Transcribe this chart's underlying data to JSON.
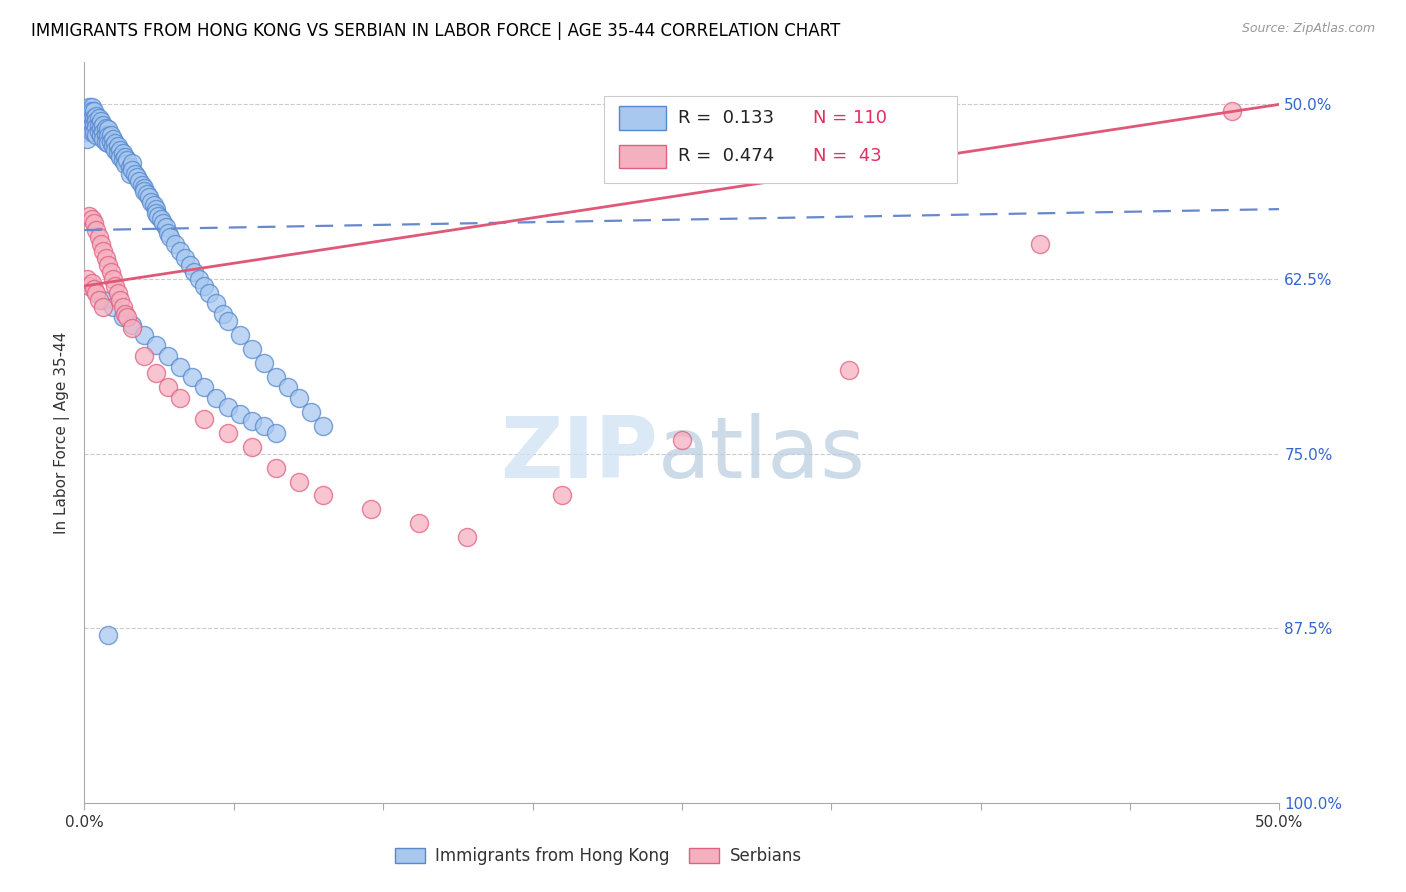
{
  "title": "IMMIGRANTS FROM HONG KONG VS SERBIAN IN LABOR FORCE | AGE 35-44 CORRELATION CHART",
  "source": "Source: ZipAtlas.com",
  "ylabel": "In Labor Force | Age 35-44",
  "xlim": [
    0.0,
    0.5
  ],
  "ylim": [
    0.5,
    1.03
  ],
  "x_tick_positions": [
    0.0,
    0.0625,
    0.125,
    0.1875,
    0.25,
    0.3125,
    0.375,
    0.4375,
    0.5
  ],
  "y_tick_positions": [
    0.5,
    0.625,
    0.75,
    0.875,
    1.0
  ],
  "hk_color_face": "#a8c8f0",
  "hk_color_edge": "#5588cc",
  "serb_color_face": "#f5b0c0",
  "serb_color_edge": "#e06080",
  "trend_hk_color": "#6688cc",
  "trend_serb_color": "#e05878",
  "r_hk_text": "R =  0.133",
  "n_hk_text": "N = 110",
  "r_serb_text": "R =  0.474",
  "n_serb_text": "N =  43",
  "legend_label_hk": "Immigrants from Hong Kong",
  "legend_label_serb": "Serbians",
  "watermark_zip": "ZIP",
  "watermark_atlas": "atlas",
  "hk_x": [
    0.001,
    0.001,
    0.001,
    0.001,
    0.001,
    0.002,
    0.002,
    0.002,
    0.002,
    0.003,
    0.003,
    0.003,
    0.003,
    0.003,
    0.004,
    0.004,
    0.004,
    0.004,
    0.005,
    0.005,
    0.005,
    0.005,
    0.006,
    0.006,
    0.006,
    0.007,
    0.007,
    0.007,
    0.008,
    0.008,
    0.008,
    0.009,
    0.009,
    0.009,
    0.01,
    0.01,
    0.01,
    0.011,
    0.011,
    0.012,
    0.012,
    0.013,
    0.013,
    0.014,
    0.014,
    0.015,
    0.015,
    0.016,
    0.016,
    0.017,
    0.017,
    0.018,
    0.019,
    0.019,
    0.02,
    0.02,
    0.021,
    0.022,
    0.023,
    0.024,
    0.025,
    0.025,
    0.026,
    0.027,
    0.028,
    0.029,
    0.03,
    0.03,
    0.031,
    0.032,
    0.033,
    0.034,
    0.035,
    0.036,
    0.038,
    0.04,
    0.042,
    0.044,
    0.046,
    0.048,
    0.05,
    0.052,
    0.055,
    0.058,
    0.06,
    0.065,
    0.07,
    0.075,
    0.08,
    0.085,
    0.09,
    0.095,
    0.1,
    0.008,
    0.012,
    0.016,
    0.02,
    0.025,
    0.03,
    0.035,
    0.04,
    0.045,
    0.05,
    0.055,
    0.06,
    0.065,
    0.07,
    0.075,
    0.08,
    0.01
  ],
  "hk_y": [
    0.995,
    0.99,
    0.985,
    0.98,
    0.975,
    0.998,
    0.995,
    0.99,
    0.985,
    0.998,
    0.995,
    0.99,
    0.985,
    0.98,
    0.995,
    0.99,
    0.985,
    0.98,
    0.992,
    0.988,
    0.984,
    0.978,
    0.99,
    0.985,
    0.98,
    0.988,
    0.983,
    0.978,
    0.985,
    0.98,
    0.975,
    0.983,
    0.978,
    0.973,
    0.982,
    0.977,
    0.972,
    0.978,
    0.973,
    0.975,
    0.97,
    0.972,
    0.967,
    0.97,
    0.965,
    0.967,
    0.962,
    0.965,
    0.96,
    0.962,
    0.957,
    0.96,
    0.955,
    0.95,
    0.958,
    0.953,
    0.95,
    0.948,
    0.945,
    0.942,
    0.94,
    0.938,
    0.936,
    0.934,
    0.93,
    0.928,
    0.925,
    0.922,
    0.92,
    0.918,
    0.915,
    0.912,
    0.908,
    0.905,
    0.9,
    0.895,
    0.89,
    0.885,
    0.88,
    0.875,
    0.87,
    0.865,
    0.858,
    0.85,
    0.845,
    0.835,
    0.825,
    0.815,
    0.805,
    0.798,
    0.79,
    0.78,
    0.77,
    0.86,
    0.855,
    0.848,
    0.842,
    0.835,
    0.828,
    0.82,
    0.812,
    0.805,
    0.798,
    0.79,
    0.783,
    0.778,
    0.773,
    0.77,
    0.765,
    0.62
  ],
  "serb_x": [
    0.001,
    0.002,
    0.002,
    0.003,
    0.003,
    0.004,
    0.004,
    0.005,
    0.005,
    0.006,
    0.006,
    0.007,
    0.008,
    0.008,
    0.009,
    0.01,
    0.011,
    0.012,
    0.013,
    0.014,
    0.015,
    0.016,
    0.017,
    0.018,
    0.02,
    0.025,
    0.03,
    0.035,
    0.04,
    0.05,
    0.06,
    0.07,
    0.08,
    0.09,
    0.1,
    0.12,
    0.14,
    0.16,
    0.2,
    0.25,
    0.32,
    0.4,
    0.48
  ],
  "serb_y": [
    0.875,
    0.92,
    0.87,
    0.918,
    0.872,
    0.915,
    0.868,
    0.91,
    0.865,
    0.905,
    0.86,
    0.9,
    0.895,
    0.855,
    0.89,
    0.885,
    0.88,
    0.875,
    0.87,
    0.865,
    0.86,
    0.855,
    0.85,
    0.848,
    0.84,
    0.82,
    0.808,
    0.798,
    0.79,
    0.775,
    0.765,
    0.755,
    0.74,
    0.73,
    0.72,
    0.71,
    0.7,
    0.69,
    0.72,
    0.76,
    0.81,
    0.9,
    0.995
  ]
}
